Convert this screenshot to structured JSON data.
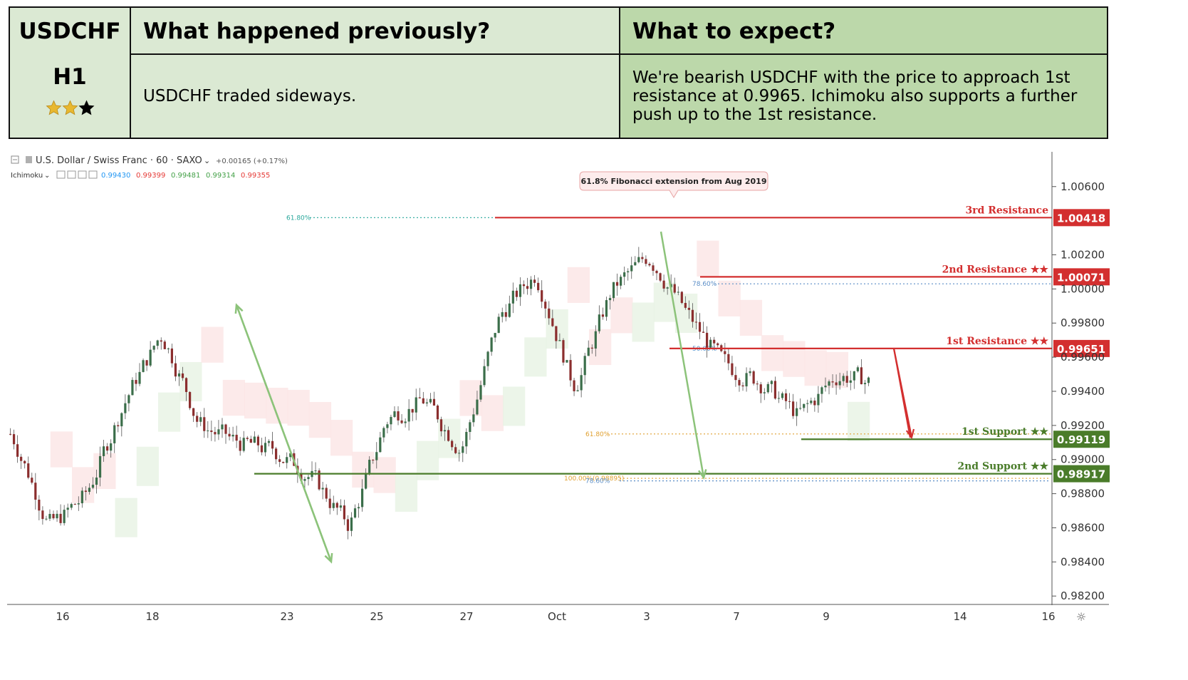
{
  "header": {
    "symbol": "USDCHF",
    "timeframe": "H1",
    "rating": {
      "filled": 2,
      "total": 3,
      "filled_color": "#e8b830",
      "empty_color": "#000000"
    },
    "prev_title": "What happened previously?",
    "prev_body": "USDCHF traded sideways.",
    "expect_title": "What to expect?",
    "expect_body": "We're bearish USDCHF with the price to approach 1st resistance at 0.9965. Ichimoku also supports a further push up to the 1st resistance."
  },
  "chart_toolbar": {
    "instrument": "U.S. Dollar / Swiss Franc · 60 · SAXO",
    "change": "+0.00165 (+0.17%)",
    "indicator": "Ichimoku",
    "indicator_values": [
      "0.99430",
      "0.99399",
      "0.99481",
      "0.99314",
      "0.99355"
    ],
    "indicator_colors": [
      "#2196f3",
      "#e53935",
      "#43a047",
      "#43a047",
      "#e53935"
    ]
  },
  "chart_data": {
    "type": "line",
    "series": [
      {
        "x": [
          "Sep 15",
          "Sep 16",
          "Sep 17",
          "Sep 18",
          "Sep 19",
          "Sep 20",
          "Sep 21",
          "Sep 23",
          "Sep 24",
          "Sep 25",
          "Sep 26",
          "Sep 27",
          "Sep 28",
          "Sep 30",
          "Oct 1",
          "Oct 2",
          "Oct 3",
          "Oct 4",
          "Oct 5",
          "Oct 7",
          "Oct 8",
          "Oct 9",
          "Oct 10",
          "Oct 11"
        ],
        "values": [
          0.9915,
          0.986,
          0.988,
          0.9935,
          0.9975,
          0.992,
          0.991,
          0.9905,
          0.989,
          0.986,
          0.9925,
          0.9935,
          0.9905,
          0.9985,
          1.001,
          0.994,
          1.0,
          1.002,
          0.9985,
          0.9955,
          0.9945,
          0.9925,
          0.995,
          0.9945
        ]
      }
    ],
    "x_tick_labels": [
      "16",
      "18",
      "23",
      "25",
      "27",
      "Oct",
      "3",
      "7",
      "9",
      "14",
      "16"
    ],
    "y_tick_labels": [
      "1.00600",
      "1.00200",
      "1.00000",
      "0.99800",
      "0.99600",
      "0.99400",
      "0.99200",
      "0.99000",
      "0.98800",
      "0.98600",
      "0.98400",
      "0.98200"
    ],
    "ylim": [
      0.9818,
      1.0067
    ],
    "grid": false,
    "levels": [
      {
        "label": "3rd Resistance",
        "value": "1.00418",
        "y": 1.00418,
        "color": "#d32f2f"
      },
      {
        "label": "2nd Resistance ★★",
        "value": "1.00071",
        "y": 1.00071,
        "color": "#d32f2f"
      },
      {
        "label": "1st Resistance ★★",
        "value": "0.99651",
        "y": 0.99651,
        "color": "#d32f2f"
      },
      {
        "label": "1st Support ★★",
        "value": "0.99119",
        "y": 0.99119,
        "color": "#4a7c2a"
      },
      {
        "label": "2nd Support ★★",
        "value": "0.98917",
        "y": 0.98917,
        "color": "#4a7c2a"
      }
    ],
    "fib_labels": [
      {
        "text": "61.80%",
        "y": 1.00418,
        "color": "#26a69a"
      },
      {
        "text": "78.60%",
        "y": 1.0003,
        "color": "#5b8ec7"
      },
      {
        "text": "50.00%",
        "y": 0.99651,
        "color": "#5b8ec7"
      },
      {
        "text": "61.80%",
        "y": 0.9915,
        "color": "#e0a030"
      },
      {
        "text": "100.00%(0.98895)",
        "y": 0.9889,
        "color": "#e0a030"
      },
      {
        "text": "78.60%",
        "y": 0.98875,
        "color": "#5b8ec7"
      }
    ],
    "annotations": [
      {
        "text": "61.8% Fibonacci extension from Aug 2019"
      }
    ]
  }
}
